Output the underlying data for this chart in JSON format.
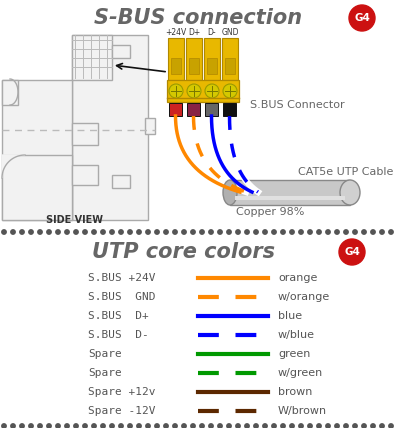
{
  "title_top": "S-BUS connection",
  "title_bottom": "UTP core colors",
  "g4_badge_color": "#cc1111",
  "background_color": "#ffffff",
  "connector_labels": [
    "+24V",
    "D+",
    "D-",
    "GND"
  ],
  "sbus_connector_text": "S.BUS Connector",
  "cat5e_text": "CAT5e UTP Cable",
  "copper_text": "Copper 98%",
  "side_view_text": "SIDE VIEW",
  "body_color": "#f2f2f2",
  "body_edge": "#aaaaaa",
  "yellow_color": "#e8b800",
  "yellow_edge": "#b08800",
  "screw_color": "#d4c800",
  "wire_sq_colors": [
    "#cc2222",
    "#882244",
    "#666666",
    "#111111"
  ],
  "legend_rows": [
    {
      "label": "S.BUS +24V",
      "color": "#ff8800",
      "dashed": false,
      "name": "orange"
    },
    {
      "label": "S.BUS  GND",
      "color": "#ff8800",
      "dashed": true,
      "name": "w/orange"
    },
    {
      "label": "S.BUS  D+",
      "color": "#0000ff",
      "dashed": false,
      "name": "blue"
    },
    {
      "label": "S.BUS  D-",
      "color": "#0000ff",
      "dashed": true,
      "name": "w/blue"
    },
    {
      "label": "Spare",
      "color": "#009900",
      "dashed": false,
      "name": "green"
    },
    {
      "label": "Spare",
      "color": "#009900",
      "dashed": true,
      "name": "w/green"
    },
    {
      "label": "Spare +12v",
      "color": "#5c2800",
      "dashed": false,
      "name": "brown"
    },
    {
      "label": "Spare -12V",
      "color": "#5c2800",
      "dashed": true,
      "name": "W/brown"
    }
  ],
  "dot_color": "#555555",
  "wire_draw_colors": [
    "#ff8800",
    "#ff8800",
    "#0000ff",
    "#0000ff"
  ],
  "wire_dashed": [
    false,
    true,
    false,
    true
  ]
}
